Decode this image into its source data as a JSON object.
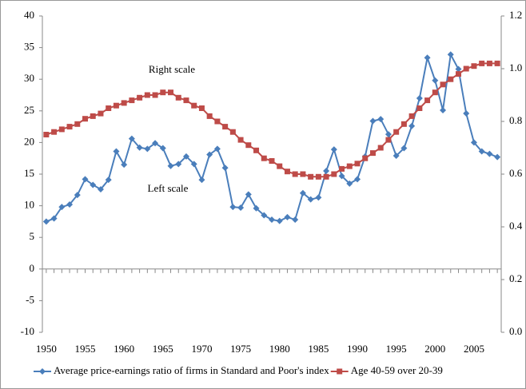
{
  "chart_data": {
    "type": "line",
    "x": [
      1950,
      1951,
      1952,
      1953,
      1954,
      1955,
      1956,
      1957,
      1958,
      1959,
      1960,
      1961,
      1962,
      1963,
      1964,
      1965,
      1966,
      1967,
      1968,
      1969,
      1970,
      1971,
      1972,
      1973,
      1974,
      1975,
      1976,
      1977,
      1978,
      1979,
      1980,
      1981,
      1982,
      1983,
      1984,
      1985,
      1986,
      1987,
      1988,
      1989,
      1990,
      1991,
      1992,
      1993,
      1994,
      1995,
      1996,
      1997,
      1998,
      1999,
      2000,
      2001,
      2002,
      2003,
      2004,
      2005,
      2006,
      2007,
      2008
    ],
    "series": [
      {
        "name": "Average price-earnings ratio of firms in Standard and Poor's index",
        "color": "#4a7ebb",
        "marker": "diamond",
        "axis": "y",
        "values": [
          7.5,
          8.0,
          9.8,
          10.2,
          11.7,
          14.2,
          13.3,
          12.6,
          14.1,
          18.6,
          16.5,
          20.6,
          19.2,
          19.0,
          19.9,
          19.1,
          16.3,
          16.6,
          17.8,
          16.6,
          14.1,
          18.1,
          19.0,
          16.0,
          9.8,
          9.7,
          11.8,
          9.6,
          8.5,
          7.8,
          7.6,
          8.2,
          7.8,
          12.0,
          11.0,
          11.3,
          15.5,
          18.9,
          14.7,
          13.5,
          14.2,
          17.8,
          23.4,
          23.7,
          21.3,
          17.9,
          19.1,
          22.6,
          27.0,
          33.4,
          29.8,
          25.1,
          33.9,
          31.6,
          24.6,
          20.0,
          18.6,
          18.2,
          17.7
        ]
      },
      {
        "name": "Age 40-59 over 20-39",
        "color": "#be4b48",
        "marker": "square",
        "axis": "y2",
        "values": [
          0.75,
          0.76,
          0.77,
          0.78,
          0.79,
          0.81,
          0.82,
          0.83,
          0.85,
          0.86,
          0.87,
          0.88,
          0.89,
          0.9,
          0.9,
          0.91,
          0.91,
          0.89,
          0.88,
          0.86,
          0.85,
          0.82,
          0.8,
          0.78,
          0.76,
          0.73,
          0.71,
          0.69,
          0.66,
          0.65,
          0.63,
          0.61,
          0.6,
          0.6,
          0.59,
          0.59,
          0.59,
          0.6,
          0.62,
          0.63,
          0.64,
          0.66,
          0.68,
          0.7,
          0.73,
          0.76,
          0.79,
          0.82,
          0.85,
          0.88,
          0.91,
          0.94,
          0.96,
          0.98,
          1.0,
          1.01,
          1.02,
          1.02,
          1.02
        ]
      }
    ],
    "xlim": [
      1949.5,
      2008.5
    ],
    "xticks": [
      1950,
      1955,
      1960,
      1965,
      1970,
      1975,
      1980,
      1985,
      1990,
      1995,
      2000,
      2005
    ],
    "ylim": [
      -10,
      40
    ],
    "yticks": [
      -10,
      -5,
      0,
      5,
      10,
      15,
      20,
      25,
      30,
      35,
      40
    ],
    "y2lim": [
      0,
      1.2
    ],
    "y2ticks": [
      {
        "value": 0,
        "label": "0.0"
      },
      {
        "value": 0.2,
        "label": "0.2"
      },
      {
        "value": 0.4,
        "label": "0.4"
      },
      {
        "value": 0.6,
        "label": "0.6"
      },
      {
        "value": 0.8,
        "label": "0.8"
      },
      {
        "value": 1,
        "label": "1.0"
      },
      {
        "value": 1.2,
        "label": "1.2"
      }
    ],
    "annotations": [
      "Right scale",
      "Left scale"
    ],
    "legend": "bottom"
  }
}
